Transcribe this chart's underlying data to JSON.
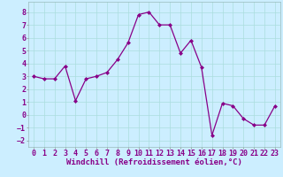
{
  "x": [
    0,
    1,
    2,
    3,
    4,
    5,
    6,
    7,
    8,
    9,
    10,
    11,
    12,
    13,
    14,
    15,
    16,
    17,
    18,
    19,
    20,
    21,
    22,
    23
  ],
  "y": [
    3.0,
    2.8,
    2.8,
    3.8,
    1.1,
    2.8,
    3.0,
    3.3,
    4.3,
    5.6,
    7.8,
    8.0,
    7.0,
    7.0,
    4.8,
    5.8,
    3.7,
    -1.6,
    0.9,
    0.7,
    -0.3,
    -0.8,
    -0.8,
    0.7
  ],
  "line_color": "#880088",
  "marker": "D",
  "markersize": 2.0,
  "linewidth": 0.9,
  "bg_color": "#cceeff",
  "grid_color": "#aadddd",
  "xlabel": "Windchill (Refroidissement éolien,°C)",
  "xlabel_fontsize": 6.5,
  "tick_fontsize": 6.0,
  "ylim": [
    -2.5,
    8.8
  ],
  "xlim": [
    -0.5,
    23.5
  ],
  "yticks": [
    -2,
    -1,
    0,
    1,
    2,
    3,
    4,
    5,
    6,
    7,
    8
  ],
  "xticks": [
    0,
    1,
    2,
    3,
    4,
    5,
    6,
    7,
    8,
    9,
    10,
    11,
    12,
    13,
    14,
    15,
    16,
    17,
    18,
    19,
    20,
    21,
    22,
    23
  ]
}
